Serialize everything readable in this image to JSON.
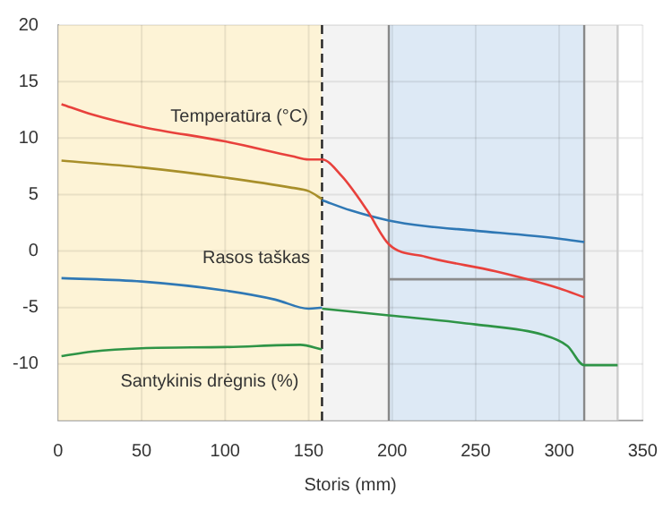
{
  "chart_data": {
    "type": "line",
    "xlabel": "Storis (mm)",
    "xlim": [
      0,
      350
    ],
    "xticks": [
      0,
      50,
      100,
      150,
      200,
      250,
      300,
      350
    ],
    "ylim": [
      -15,
      20
    ],
    "yticks": [
      {
        "value": -15,
        "label": null
      },
      -10,
      -5,
      0,
      5,
      10,
      15,
      20
    ],
    "grid": true,
    "marker": "none",
    "line_style": "solid",
    "series": [
      {
        "color": "#e8413c",
        "x": [
          2,
          20,
          50,
          100,
          140,
          150,
          158,
          170,
          185,
          198,
          220,
          262,
          300,
          315
        ],
        "values": [
          13,
          12.1,
          11,
          9.7,
          8.4,
          8.1,
          8.1,
          6.6,
          3.6,
          0.6,
          -0.5,
          -1.8,
          -3.3,
          -4.1
        ]
      },
      {
        "color": "#a88f2a",
        "x": [
          2,
          50,
          100,
          140,
          150,
          158
        ],
        "values": [
          8,
          7.4,
          6.5,
          5.6,
          5.3,
          4.6
        ]
      },
      {
        "color": "#2f78b5",
        "x": [
          158,
          175,
          198,
          220,
          250,
          300,
          315
        ],
        "values": [
          4.5,
          3.6,
          2.7,
          2.2,
          1.8,
          1.1,
          0.8
        ]
      },
      {
        "color": "#2f78b5",
        "x": [
          2,
          50,
          100,
          130,
          150,
          158
        ],
        "values": [
          -2.4,
          -2.7,
          -3.5,
          -4.3,
          -5.1,
          -5
        ]
      },
      {
        "color": "#2e9446",
        "x": [
          2,
          20,
          50,
          100,
          145,
          158
        ],
        "values": [
          -9.3,
          -8.9,
          -8.6,
          -8.5,
          -8.3,
          -8.7
        ]
      },
      {
        "color": "#2e9446",
        "x": [
          158,
          198,
          250,
          290,
          305,
          315,
          335
        ],
        "values": [
          -5.1,
          -5.7,
          -6.5,
          -7.4,
          -8.4,
          -10.1,
          -10.1
        ]
      },
      {
        "color": "#8c8c8c",
        "x": [
          198,
          315
        ],
        "values": [
          -2.5,
          -2.5
        ]
      }
    ],
    "bands": [
      {
        "axis": "x",
        "from": 0,
        "to": 158,
        "color": "#fdf3d6"
      },
      {
        "axis": "x",
        "from": 158,
        "to": 198,
        "color": "#f3f3f3"
      },
      {
        "axis": "x",
        "from": 198,
        "to": 315,
        "color": "#dde9f5"
      },
      {
        "axis": "x",
        "from": 315,
        "to": 335,
        "color": "#f3f3f3"
      }
    ],
    "ref_lines": [
      {
        "axis": "x",
        "value": 158,
        "color": "#222222",
        "line_style": "dashed"
      },
      {
        "axis": "x",
        "value": 198,
        "color": "#888888",
        "line_style": "solid"
      },
      {
        "axis": "x",
        "value": 315,
        "color": "#888888",
        "line_style": "solid"
      },
      {
        "axis": "x",
        "value": 335,
        "color": "#cccccc",
        "line_style": "solid"
      }
    ],
    "annotations": [
      "Temperatūra (°C)",
      "Rasos taškas",
      "Santykinis drėgnis (%)"
    ]
  }
}
